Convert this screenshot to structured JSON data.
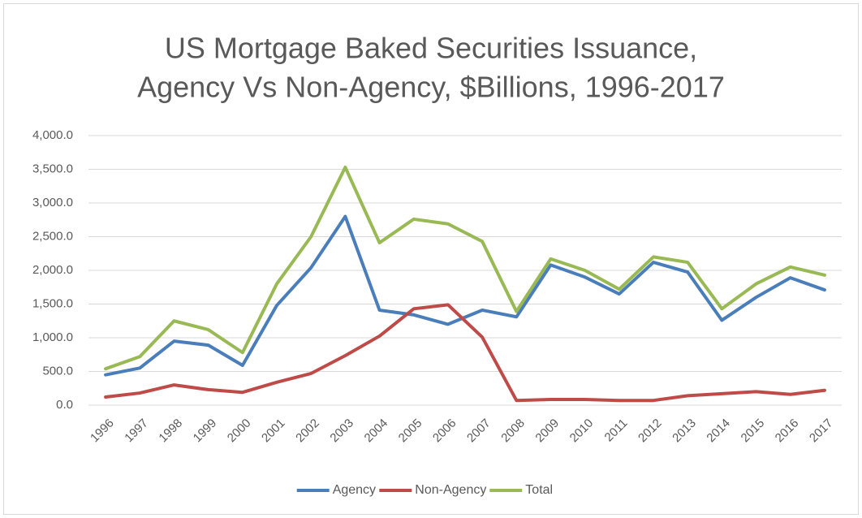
{
  "chart_data": {
    "type": "line",
    "title": [
      "US Mortgage Baked Securities Issuance,",
      "Agency Vs Non-Agency, $Billions, 1996-2017"
    ],
    "categories": [
      "1996",
      "1997",
      "1998",
      "1999",
      "2000",
      "2001",
      "2002",
      "2003",
      "2004",
      "2005",
      "2006",
      "2007",
      "2008",
      "2009",
      "2010",
      "2011",
      "2012",
      "2013",
      "2014",
      "2015",
      "2016",
      "2017"
    ],
    "series": [
      {
        "name": "Agency",
        "color": "#4a7ebb",
        "values": [
          450,
          550,
          950,
          890,
          590,
          1480,
          2040,
          2800,
          1410,
          1340,
          1200,
          1410,
          1310,
          2080,
          1900,
          1650,
          2120,
          1975,
          1260,
          1600,
          1890,
          1710
        ]
      },
      {
        "name": "Non-Agency",
        "color": "#be4b48",
        "values": [
          120,
          180,
          300,
          230,
          190,
          340,
          470,
          735,
          1025,
          1430,
          1490,
          1010,
          70,
          85,
          85,
          70,
          70,
          140,
          170,
          200,
          160,
          220
        ]
      },
      {
        "name": "Total",
        "color": "#98b954",
        "values": [
          540,
          720,
          1250,
          1120,
          780,
          1800,
          2500,
          3530,
          2410,
          2760,
          2690,
          2430,
          1390,
          2170,
          2000,
          1720,
          2200,
          2120,
          1430,
          1800,
          2050,
          1930
        ]
      }
    ],
    "ylim": [
      0,
      4000
    ],
    "yticks": [
      {
        "value": 0,
        "label": "0.0"
      },
      {
        "value": 500,
        "label": "500.0"
      },
      {
        "value": 1000,
        "label": "1,000.0"
      },
      {
        "value": 1500,
        "label": "1,500.0"
      },
      {
        "value": 2000,
        "label": "2,000.0"
      },
      {
        "value": 2500,
        "label": "2,500.0"
      },
      {
        "value": 3000,
        "label": "3,000.0"
      },
      {
        "value": 3500,
        "label": "3,500.0"
      },
      {
        "value": 4000,
        "label": "4,000.0"
      }
    ],
    "grid": true,
    "legend": "bottom"
  }
}
